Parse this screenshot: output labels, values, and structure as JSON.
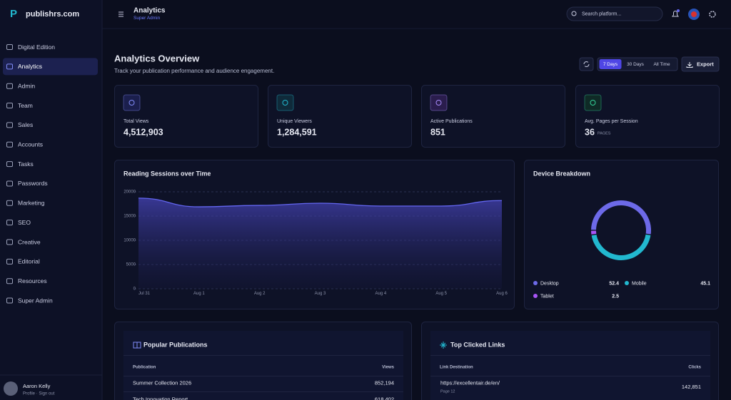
{
  "brand": "publishrs.com",
  "sidebar": {
    "items": [
      "Digital Edition",
      "Analytics",
      "Admin",
      "Team",
      "Sales",
      "Accounts",
      "Tasks",
      "Passwords",
      "Marketing",
      "SEO",
      "Creative",
      "Editorial",
      "Resources",
      "Super Admin"
    ],
    "active": 1,
    "user": {
      "name": "Aaron Kelly",
      "links": "Profile · Sign out"
    }
  },
  "header": {
    "title": "Analytics",
    "subtitle": "Super Admin",
    "search": "Search platform..."
  },
  "page": {
    "title": "Analytics Overview",
    "subtitle": "Track your publication performance and audience engagement.",
    "ranges": [
      "7 Days",
      "30 Days",
      "All Time"
    ],
    "active_range": 0,
    "export": "Export"
  },
  "stats": [
    {
      "label": "Total Views",
      "value": "4,512,903"
    },
    {
      "label": "Unique Viewers",
      "value": "1,284,591"
    },
    {
      "label": "Active Publications",
      "value": "851"
    },
    {
      "label": "Avg. Pages per Session",
      "value": "36",
      "unit": "PAGES"
    }
  ],
  "chart_data": [
    {
      "type": "line",
      "title": "Reading Sessions over Time",
      "x": [
        "Jul 31",
        "Aug 1",
        "Aug 2",
        "Aug 3",
        "Aug 4",
        "Aug 5",
        "Aug 6"
      ],
      "values": [
        18700,
        16900,
        17200,
        17650,
        17060,
        17060,
        18200
      ],
      "color": "#6366f1",
      "ylim": [
        0,
        20000
      ],
      "yticks": [
        0,
        5000,
        10000,
        15000,
        20000
      ],
      "grid": true
    },
    {
      "type": "pie",
      "title": "Device Breakdown",
      "categories": [
        "Desktop",
        "Mobile",
        "Tablet"
      ],
      "values": [
        52.4,
        45.1,
        2.5
      ],
      "colors": [
        "#6d6ae8",
        "#22b8cf",
        "#a855f7"
      ]
    }
  ],
  "publications": {
    "title": "Popular Publications",
    "columns": [
      "Publication",
      "Views"
    ],
    "rows": [
      [
        "Summer Collection 2026",
        "852,194"
      ],
      [
        "Tech Innovation Report",
        "618,402"
      ]
    ]
  },
  "links": {
    "title": "Top Clicked Links",
    "columns": [
      "Link Destination",
      "Clicks"
    ],
    "rows": [
      {
        "url": "https://excellentair.de/en/",
        "page": "Page 12",
        "clicks": "142,851"
      }
    ]
  }
}
